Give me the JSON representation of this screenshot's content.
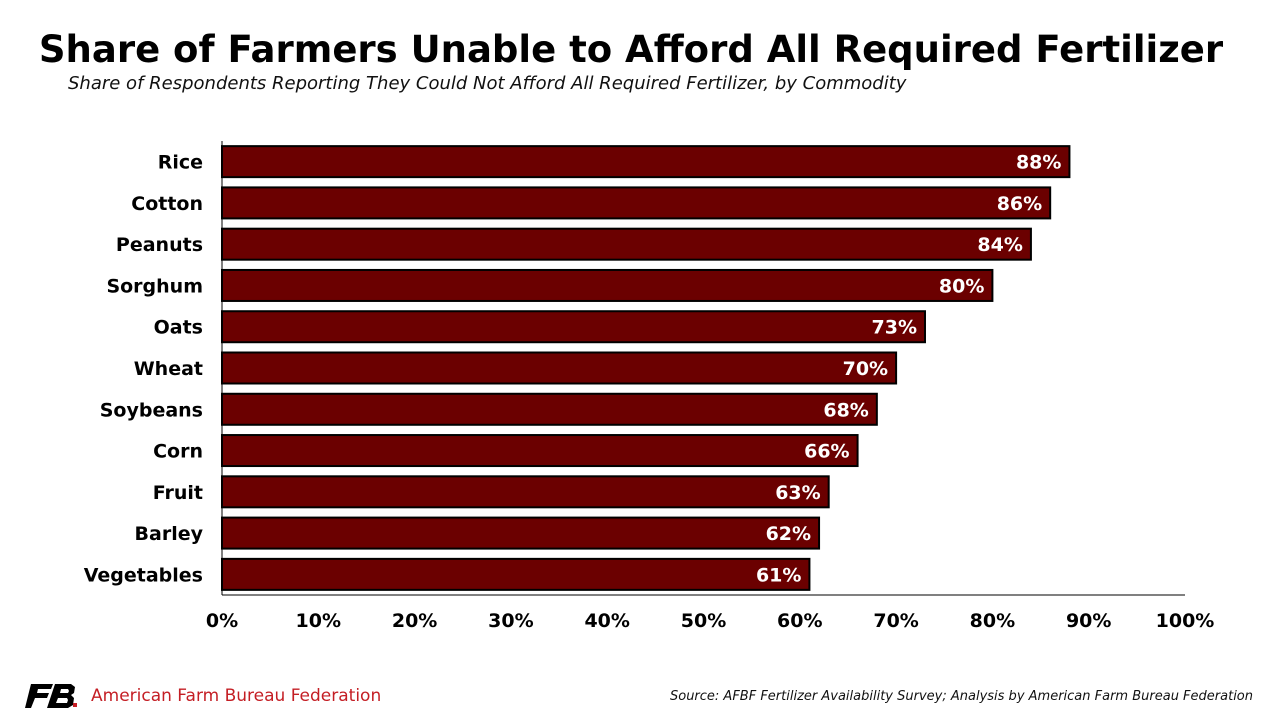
{
  "chart_data": {
    "type": "bar",
    "orientation": "horizontal",
    "title": "Share of Farmers Unable to Afford All Required Fertilizer",
    "subtitle": "Share of Respondents Reporting They Could Not Afford All Required Fertilizer, by Commodity",
    "categories": [
      "Rice",
      "Cotton",
      "Peanuts",
      "Sorghum",
      "Oats",
      "Wheat",
      "Soybeans",
      "Corn",
      "Fruit",
      "Barley",
      "Vegetables"
    ],
    "values": [
      88,
      86,
      84,
      80,
      73,
      70,
      68,
      66,
      63,
      62,
      61
    ],
    "data_labels": [
      "88%",
      "86%",
      "84%",
      "80%",
      "73%",
      "70%",
      "68%",
      "66%",
      "63%",
      "62%",
      "61%"
    ],
    "xlim": [
      0,
      100
    ],
    "x_ticks": [
      "0%",
      "10%",
      "20%",
      "30%",
      "40%",
      "50%",
      "60%",
      "70%",
      "80%",
      "90%",
      "100%"
    ],
    "grid": false,
    "legend": "none",
    "bar_color": "#6b0000"
  },
  "footer": {
    "brand": "American Farm Bureau Federation",
    "brand_mark": "FB",
    "brand_color": "#c41e24",
    "source": "Source: AFBF Fertilizer Availability Survey; Analysis by American Farm Bureau Federation"
  }
}
